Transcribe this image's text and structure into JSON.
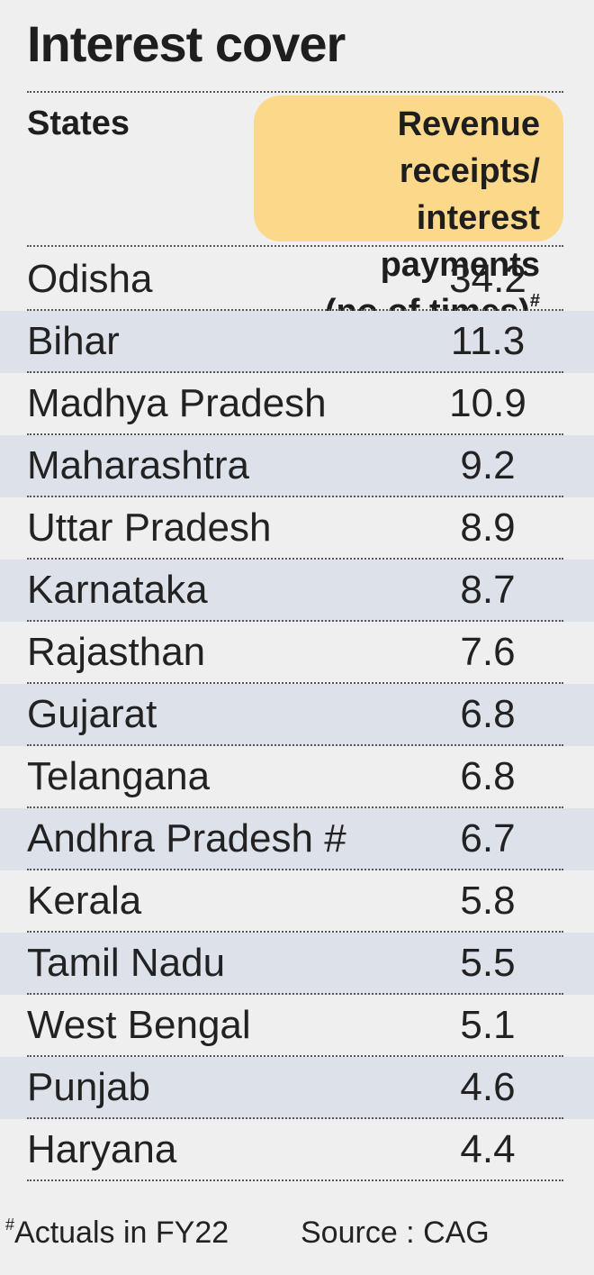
{
  "title": "Interest cover",
  "header": {
    "states_label": "States",
    "value_label_line1": "Revenue receipts/",
    "value_label_line2": "interest payments",
    "value_label_line3": "(no of times)",
    "value_label_mark": "#"
  },
  "colors": {
    "header_highlight": "#fbd88a",
    "row_shade": "#dde1ea",
    "background": "#efefef"
  },
  "chart_data": {
    "type": "table",
    "title": "Interest cover",
    "columns": [
      "States",
      "Revenue receipts/ interest payments (no of times)#"
    ],
    "rows": [
      {
        "state": "Odisha",
        "value": "34.2"
      },
      {
        "state": "Bihar",
        "value": "11.3"
      },
      {
        "state": "Madhya Pradesh",
        "value": "10.9"
      },
      {
        "state": "Maharashtra",
        "value": "9.2"
      },
      {
        "state": "Uttar Pradesh",
        "value": "8.9"
      },
      {
        "state": "Karnataka",
        "value": "8.7"
      },
      {
        "state": "Rajasthan",
        "value": "7.6"
      },
      {
        "state": "Gujarat",
        "value": "6.8"
      },
      {
        "state": "Telangana",
        "value": "6.8"
      },
      {
        "state": "Andhra Pradesh #",
        "value": "6.7"
      },
      {
        "state": "Kerala",
        "value": "5.8"
      },
      {
        "state": "Tamil Nadu",
        "value": "5.5"
      },
      {
        "state": "West Bengal",
        "value": "5.1"
      },
      {
        "state": "Punjab",
        "value": "4.6"
      },
      {
        "state": "Haryana",
        "value": "4.4"
      }
    ]
  },
  "footer": {
    "footnote_mark": "#",
    "footnote_text": "Actuals in FY22",
    "source": "Source : CAG"
  }
}
